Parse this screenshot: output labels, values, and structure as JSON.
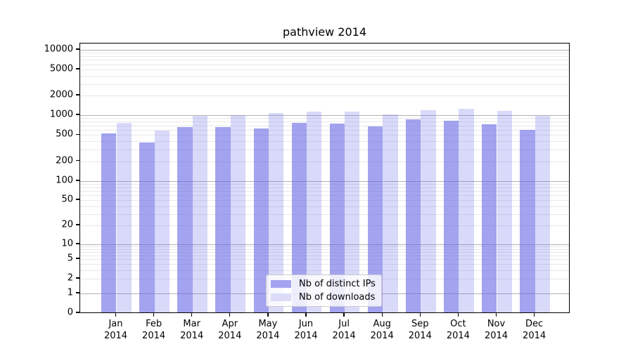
{
  "title": "pathview 2014",
  "colors": {
    "bar_ips": "rgba(102,102,230,0.6)",
    "bar_downloads": "rgba(102,102,230,0.25)",
    "legend_swatch_ips": "#a3a3f0",
    "legend_swatch_downloads": "#dcdcf9",
    "grid_major": "rgba(0,0,0,0.30)",
    "grid_minor": "rgba(0,0,0,0.09)",
    "axis": "#000000"
  },
  "chart_data": {
    "type": "bar",
    "title": "pathview 2014",
    "categories": [
      "Jan 2014",
      "Feb 2014",
      "Mar 2014",
      "Apr 2014",
      "May 2014",
      "Jun 2014",
      "Jul 2014",
      "Aug 2014",
      "Sep 2014",
      "Oct 2014",
      "Nov 2014",
      "Dec 2014"
    ],
    "series": [
      {
        "name": "Nb of distinct IPs",
        "values": [
          500,
          365,
          630,
          635,
          595,
          735,
          715,
          650,
          820,
          790,
          690,
          570
        ]
      },
      {
        "name": "Nb of downloads",
        "values": [
          720,
          555,
          920,
          960,
          1030,
          1075,
          1075,
          965,
          1130,
          1200,
          1110,
          920
        ]
      }
    ],
    "xlabel": "",
    "ylabel": "",
    "yscale": "symlog",
    "ylim": [
      0,
      13000
    ],
    "yticks": [
      10000,
      5000,
      2000,
      1000,
      500,
      200,
      100,
      50,
      20,
      10,
      5,
      2,
      1,
      0
    ],
    "ytick_labels": [
      "10000",
      "5000",
      "2000",
      "1000",
      "500",
      "200",
      "100",
      "50",
      "20",
      "10",
      "5",
      "2",
      "1",
      "0"
    ],
    "grid": true,
    "legend_position": "lower center"
  },
  "legend": {
    "items": [
      {
        "label": "Nb of distinct IPs"
      },
      {
        "label": "Nb of downloads"
      }
    ]
  }
}
